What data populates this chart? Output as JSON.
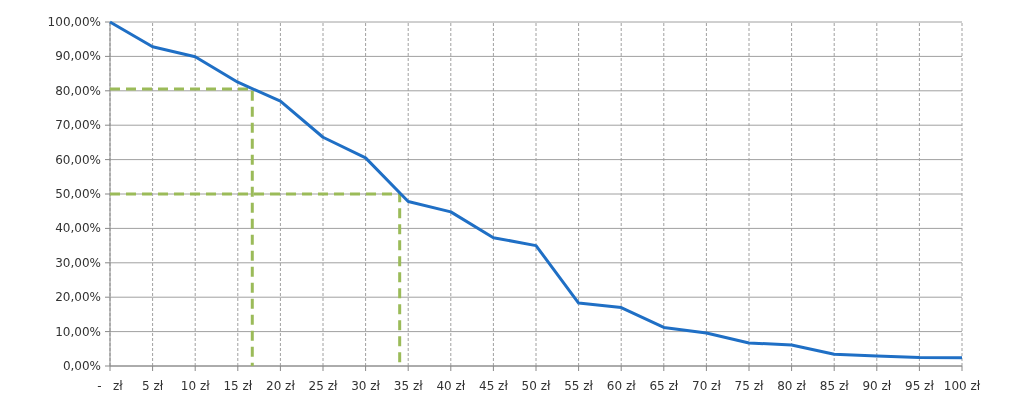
{
  "chart_data": {
    "type": "line",
    "xlim": [
      0,
      100
    ],
    "ylim": [
      0,
      100
    ],
    "xticks": [
      {
        "value": 0,
        "label": "-   zł"
      },
      {
        "value": 5,
        "label": "5 zł"
      },
      {
        "value": 10,
        "label": "10 zł"
      },
      {
        "value": 15,
        "label": "15 zł"
      },
      {
        "value": 20,
        "label": "20 zł"
      },
      {
        "value": 25,
        "label": "25 zł"
      },
      {
        "value": 30,
        "label": "30 zł"
      },
      {
        "value": 35,
        "label": "35 zł"
      },
      {
        "value": 40,
        "label": "40 zł"
      },
      {
        "value": 45,
        "label": "45 zł"
      },
      {
        "value": 50,
        "label": "50 zł"
      },
      {
        "value": 55,
        "label": "55 zł"
      },
      {
        "value": 60,
        "label": "60 zł"
      },
      {
        "value": 65,
        "label": "65 zł"
      },
      {
        "value": 70,
        "label": "70 zł"
      },
      {
        "value": 75,
        "label": "75 zł"
      },
      {
        "value": 80,
        "label": "80 zł"
      },
      {
        "value": 85,
        "label": "85 zł"
      },
      {
        "value": 90,
        "label": "90 zł"
      },
      {
        "value": 95,
        "label": "95 zł"
      },
      {
        "value": 100,
        "label": "100 zł"
      }
    ],
    "yticks": [
      {
        "value": 0,
        "label": "0,00%"
      },
      {
        "value": 10,
        "label": "10,00%"
      },
      {
        "value": 20,
        "label": "20,00%"
      },
      {
        "value": 30,
        "label": "30,00%"
      },
      {
        "value": 40,
        "label": "40,00%"
      },
      {
        "value": 50,
        "label": "50,00%"
      },
      {
        "value": 60,
        "label": "60,00%"
      },
      {
        "value": 70,
        "label": "70,00%"
      },
      {
        "value": 80,
        "label": "80,00%"
      },
      {
        "value": 90,
        "label": "90,00%"
      },
      {
        "value": 100,
        "label": "100,00%"
      }
    ],
    "grid": true,
    "series": [
      {
        "color": "#1f6fc5",
        "x": [
          0,
          5,
          10,
          15,
          20,
          25,
          30,
          35,
          40,
          45,
          50,
          55,
          60,
          65,
          70,
          75,
          80,
          85,
          90,
          95,
          100
        ],
        "values": [
          100,
          92.8,
          89.9,
          82.5,
          77,
          66.5,
          60.5,
          47.8,
          44.8,
          37.3,
          35,
          18.3,
          17,
          11.2,
          9.6,
          6.7,
          6.1,
          3.4,
          2.9,
          2.5,
          2.4
        ]
      },
      {
        "color": "#9bbb59",
        "line_style": "dashed",
        "x": [
          0,
          16.7,
          16.7
        ],
        "values": [
          80.5,
          80.5,
          0
        ]
      },
      {
        "color": "#9bbb59",
        "line_style": "dashed",
        "x": [
          0,
          34,
          34
        ],
        "values": [
          50,
          50,
          0
        ]
      }
    ]
  }
}
